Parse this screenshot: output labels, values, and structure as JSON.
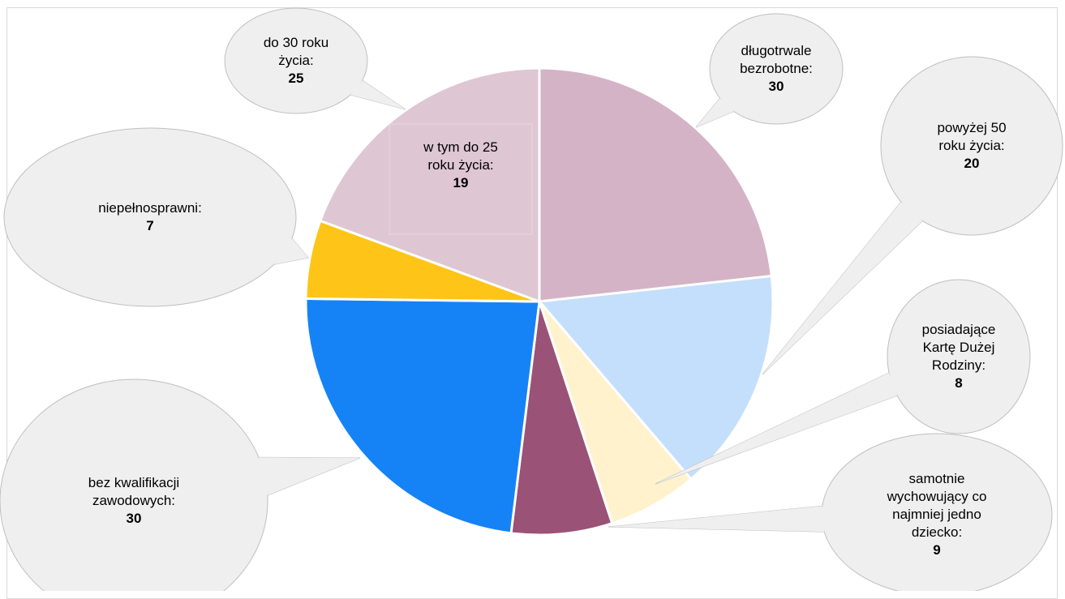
{
  "title": "",
  "chart_data": {
    "type": "pie",
    "slices": [
      {
        "label_lines": [
          "długotrwale",
          "bezrobotne:"
        ],
        "value": 30,
        "color": "#d5b3c6"
      },
      {
        "label_lines": [
          "powyżej 50",
          "roku życia:"
        ],
        "value": 20,
        "color": "#c4dffb"
      },
      {
        "label_lines": [
          "posiadające",
          "Kartę Dużej",
          "Rodziny:"
        ],
        "value": 8,
        "color": "#fff2cc"
      },
      {
        "label_lines": [
          "samotnie",
          "wychowujący co",
          "najmniej jedno",
          "dziecko:"
        ],
        "value": 9,
        "color": "#9a5277"
      },
      {
        "label_lines": [
          "bez kwalifikacji",
          "zawodowych:"
        ],
        "value": 30,
        "color": "#1583f6"
      },
      {
        "label_lines": [
          "niepełnosprawni:"
        ],
        "value": 7,
        "color": "#fec518"
      },
      {
        "label_lines": [
          "do 30 roku",
          "życia:"
        ],
        "value": 25,
        "color": "#dec6d3"
      }
    ],
    "inner_note": {
      "label_lines": [
        "w tym do 25",
        "roku życia:"
      ],
      "value": 19
    }
  }
}
